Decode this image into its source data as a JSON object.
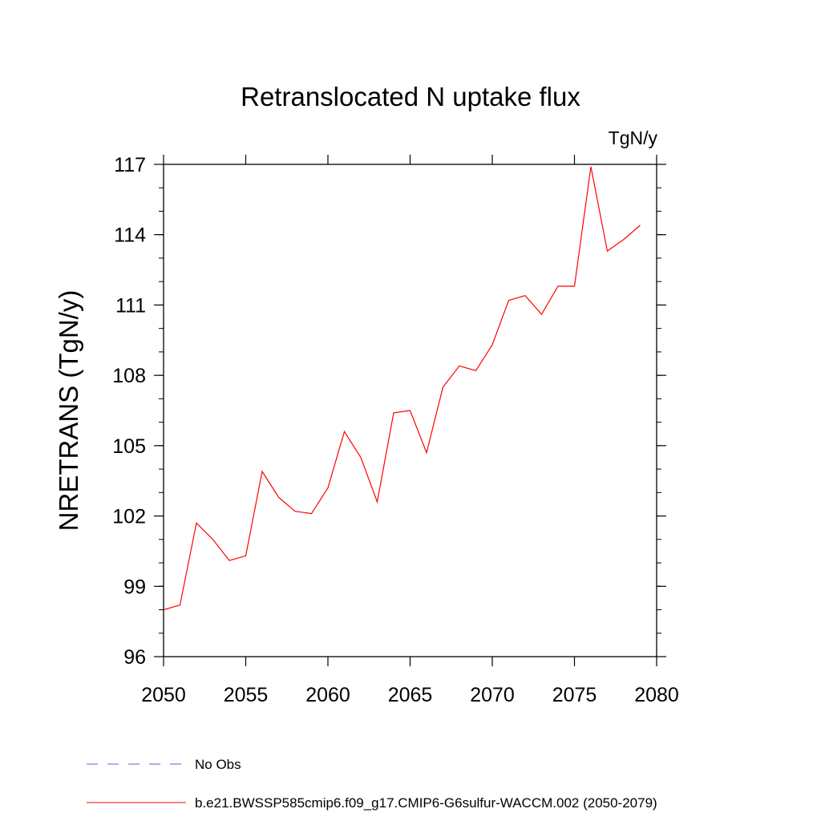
{
  "chart_data": {
    "type": "line",
    "title": "Retranslocated N uptake flux",
    "units": "TgN/y",
    "xlabel": "",
    "ylabel": "NRETRANS  (TgN/y)",
    "xlim": [
      2050,
      2080
    ],
    "ylim": [
      96,
      117
    ],
    "x_ticks": [
      2050,
      2055,
      2060,
      2065,
      2070,
      2075,
      2080
    ],
    "y_ticks": [
      96,
      99,
      102,
      105,
      108,
      111,
      114,
      117
    ],
    "grid": false,
    "legend_position": "bottom",
    "series": [
      {
        "name": "No Obs",
        "style": "dashed",
        "color": "#6a5acd",
        "x": [],
        "values": []
      },
      {
        "name": "b.e21.BWSSP585cmip6.f09_g17.CMIP6-G6sulfur-WACCM.002 (2050-2079)",
        "style": "solid",
        "color": "#ff0000",
        "x": [
          2050,
          2051,
          2052,
          2053,
          2054,
          2055,
          2056,
          2057,
          2058,
          2059,
          2060,
          2061,
          2062,
          2063,
          2064,
          2065,
          2066,
          2067,
          2068,
          2069,
          2070,
          2071,
          2072,
          2073,
          2074,
          2075,
          2076,
          2077,
          2078,
          2079
        ],
        "values": [
          98.0,
          98.2,
          101.7,
          101.0,
          100.1,
          100.3,
          103.9,
          102.8,
          102.2,
          102.1,
          103.2,
          105.6,
          104.5,
          102.6,
          106.4,
          106.5,
          104.7,
          107.5,
          108.4,
          108.2,
          109.3,
          111.2,
          111.4,
          110.6,
          111.8,
          111.8,
          116.9,
          113.3,
          113.8,
          114.4
        ]
      }
    ]
  }
}
